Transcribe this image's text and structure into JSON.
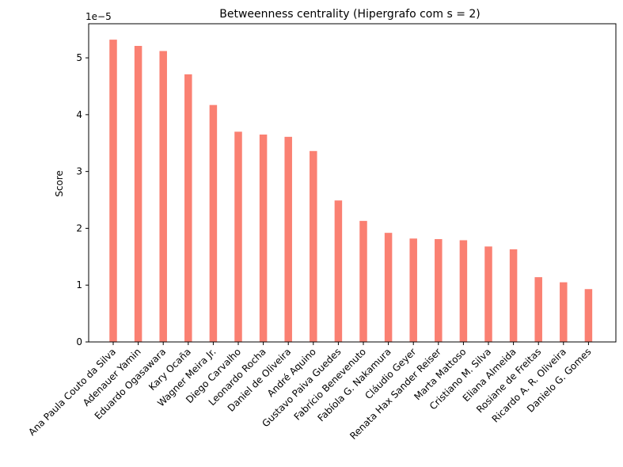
{
  "chart_data": {
    "type": "bar",
    "title": "Betweenness centrality (Hipergrafo com s = 2)",
    "xlabel": "",
    "ylabel": "Score",
    "y_multiplier_label": "1e−5",
    "ylim": [
      0,
      5.6
    ],
    "yticks": [
      0,
      1,
      2,
      3,
      4,
      5
    ],
    "ytick_labels": [
      "0",
      "1",
      "2",
      "3",
      "4",
      "5"
    ],
    "grid": false,
    "bar_color": "#fa8072",
    "categories": [
      "Ana Paula Couto da Silva",
      "Adenauer Yamin",
      "Eduardo Ogasawara",
      "Kary Ocaña",
      "Wagner Meira Jr.",
      "Diego Carvalho",
      "Leonardo Rocha",
      "Daniel de Oliveira",
      "André Aquino",
      "Gustavo Paiva Guedes",
      "Fabrício Benevenuto",
      "Fabíola G. Nakamura",
      "Cláudio Geyer",
      "Renata Hax Sander Reiser",
      "Marta Mattoso",
      "Cristiano M. Silva",
      "Eliana Almeida",
      "Rosiane de Freitas",
      "Ricardo A. R. Oliveira",
      "Danielo G. Gomes"
    ],
    "values": [
      5.32,
      5.21,
      5.12,
      4.71,
      4.17,
      3.7,
      3.65,
      3.61,
      3.36,
      2.49,
      2.13,
      1.92,
      1.82,
      1.81,
      1.79,
      1.68,
      1.63,
      1.14,
      1.05,
      0.93
    ]
  }
}
